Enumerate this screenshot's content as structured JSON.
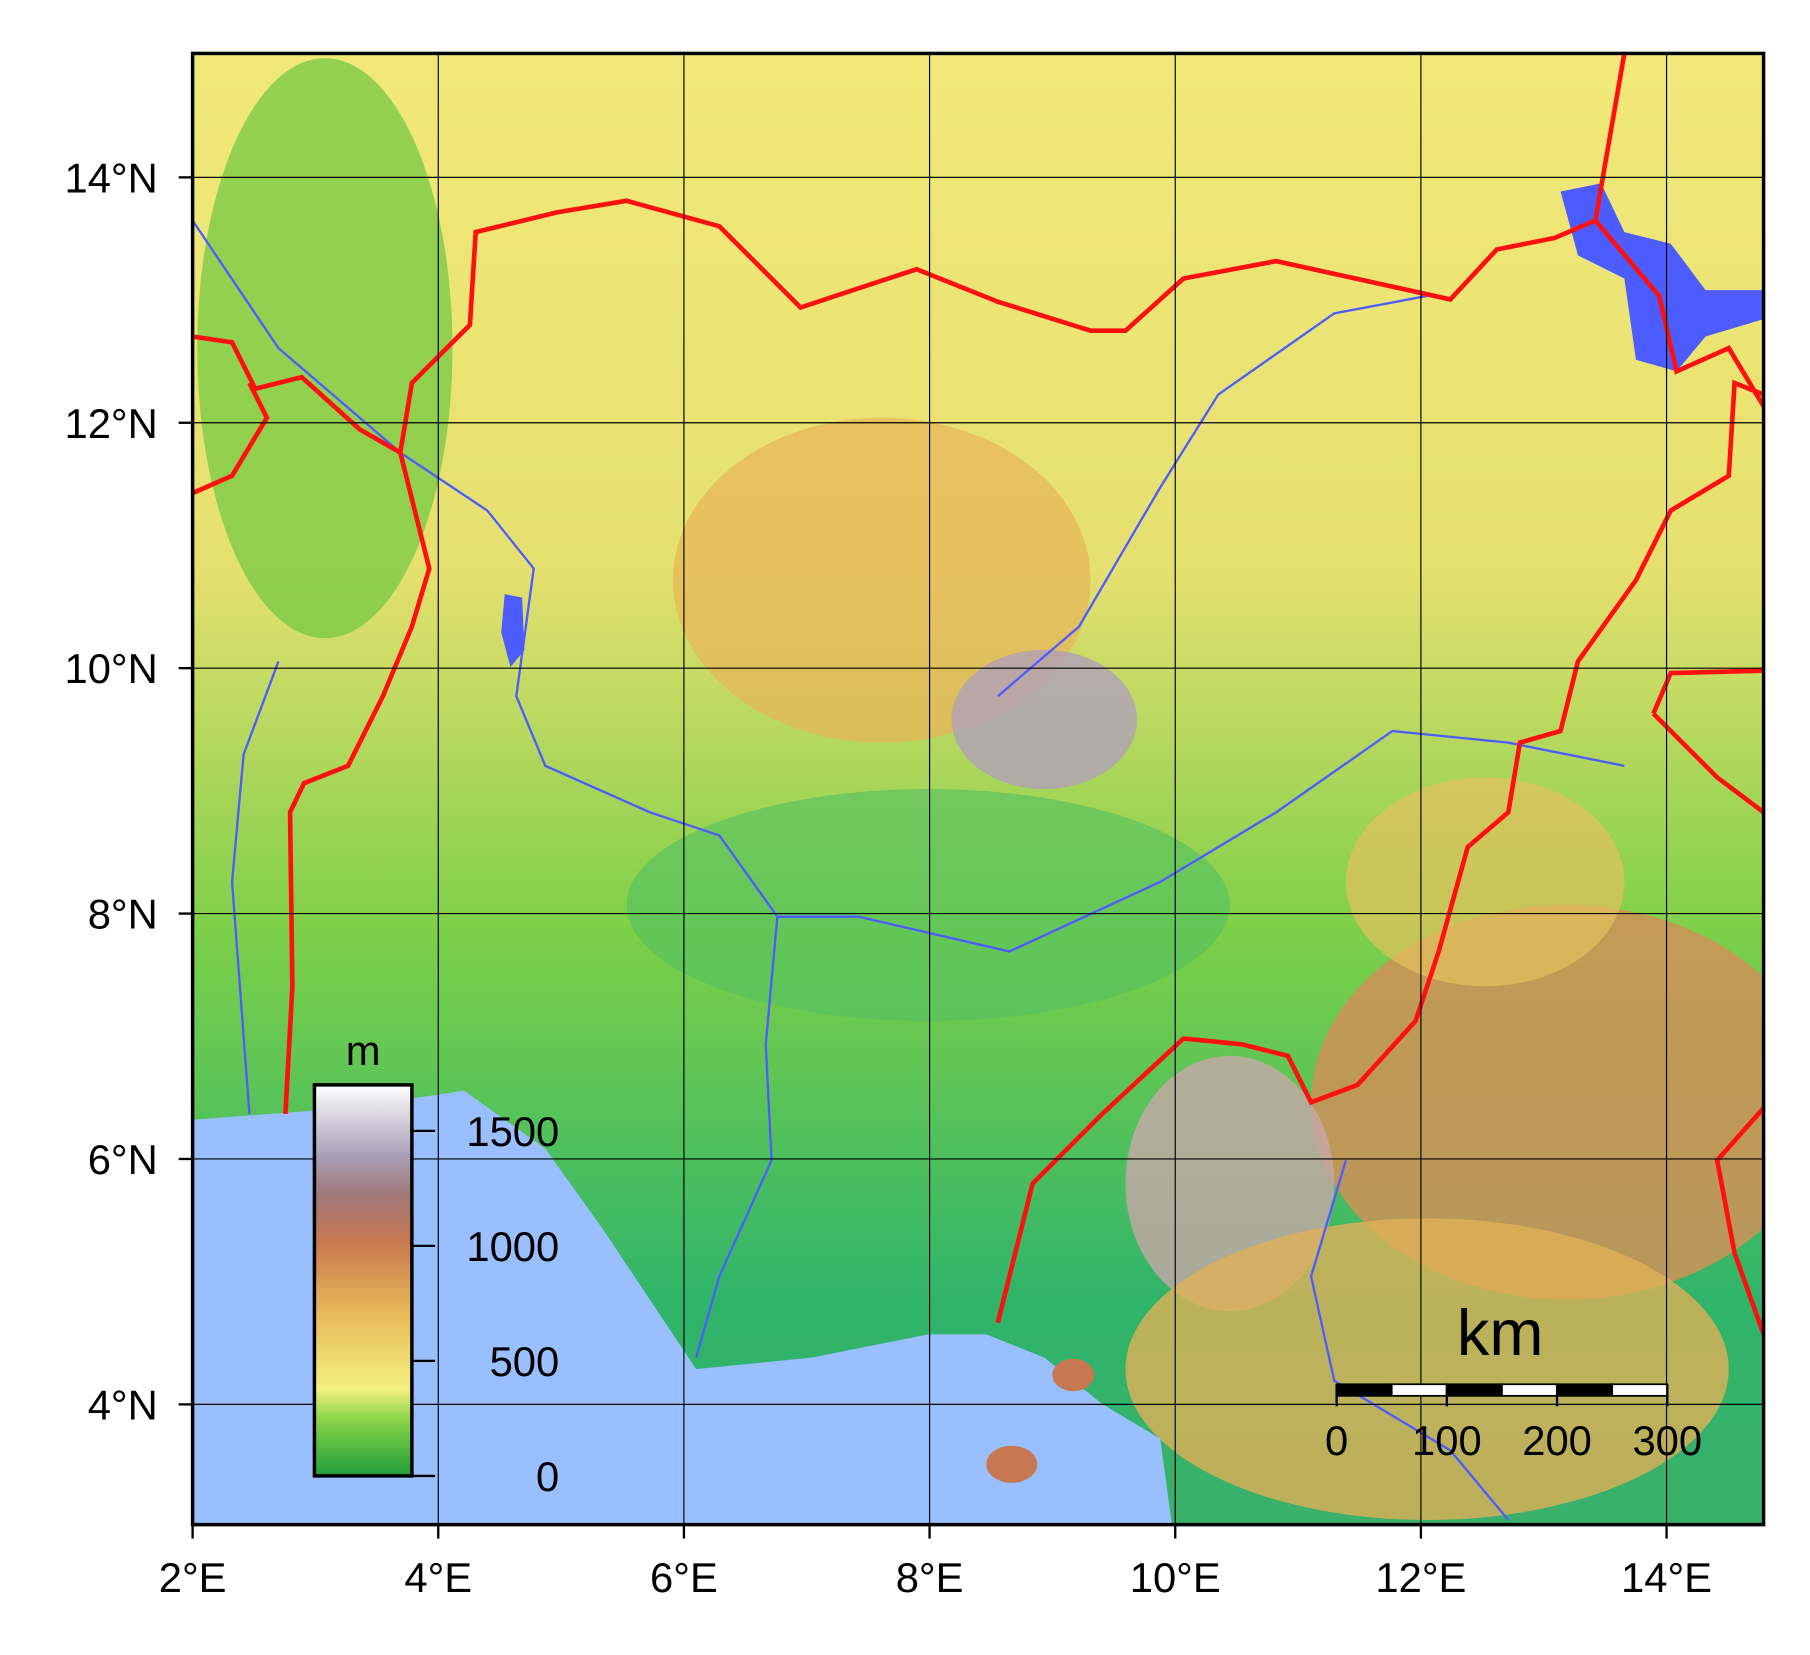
{
  "map": {
    "lon_range": [
      2,
      14.79
    ],
    "lat_range": [
      3.02,
      15.01
    ],
    "lon_ticks": [
      {
        "value": 2,
        "label": "2°E"
      },
      {
        "value": 4,
        "label": "4°E"
      },
      {
        "value": 6,
        "label": "6°E"
      },
      {
        "value": 8,
        "label": "8°E"
      },
      {
        "value": 10,
        "label": "10°E"
      },
      {
        "value": 12,
        "label": "12°E"
      },
      {
        "value": 14,
        "label": "14°E"
      }
    ],
    "lat_ticks": [
      {
        "value": 4,
        "label": "4°N"
      },
      {
        "value": 6,
        "label": "6°N"
      },
      {
        "value": 8,
        "label": "8°N"
      },
      {
        "value": 10,
        "label": "10°N"
      },
      {
        "value": 12,
        "label": "12°N"
      },
      {
        "value": 14,
        "label": "14°N"
      }
    ],
    "legend": {
      "unit": "m",
      "range": [
        0,
        1700
      ],
      "ticks": [
        0,
        500,
        1000,
        1500
      ]
    },
    "scale_bar": {
      "unit": "km",
      "range": [
        0,
        300
      ],
      "ticks": [
        0,
        100,
        200,
        300
      ]
    }
  }
}
